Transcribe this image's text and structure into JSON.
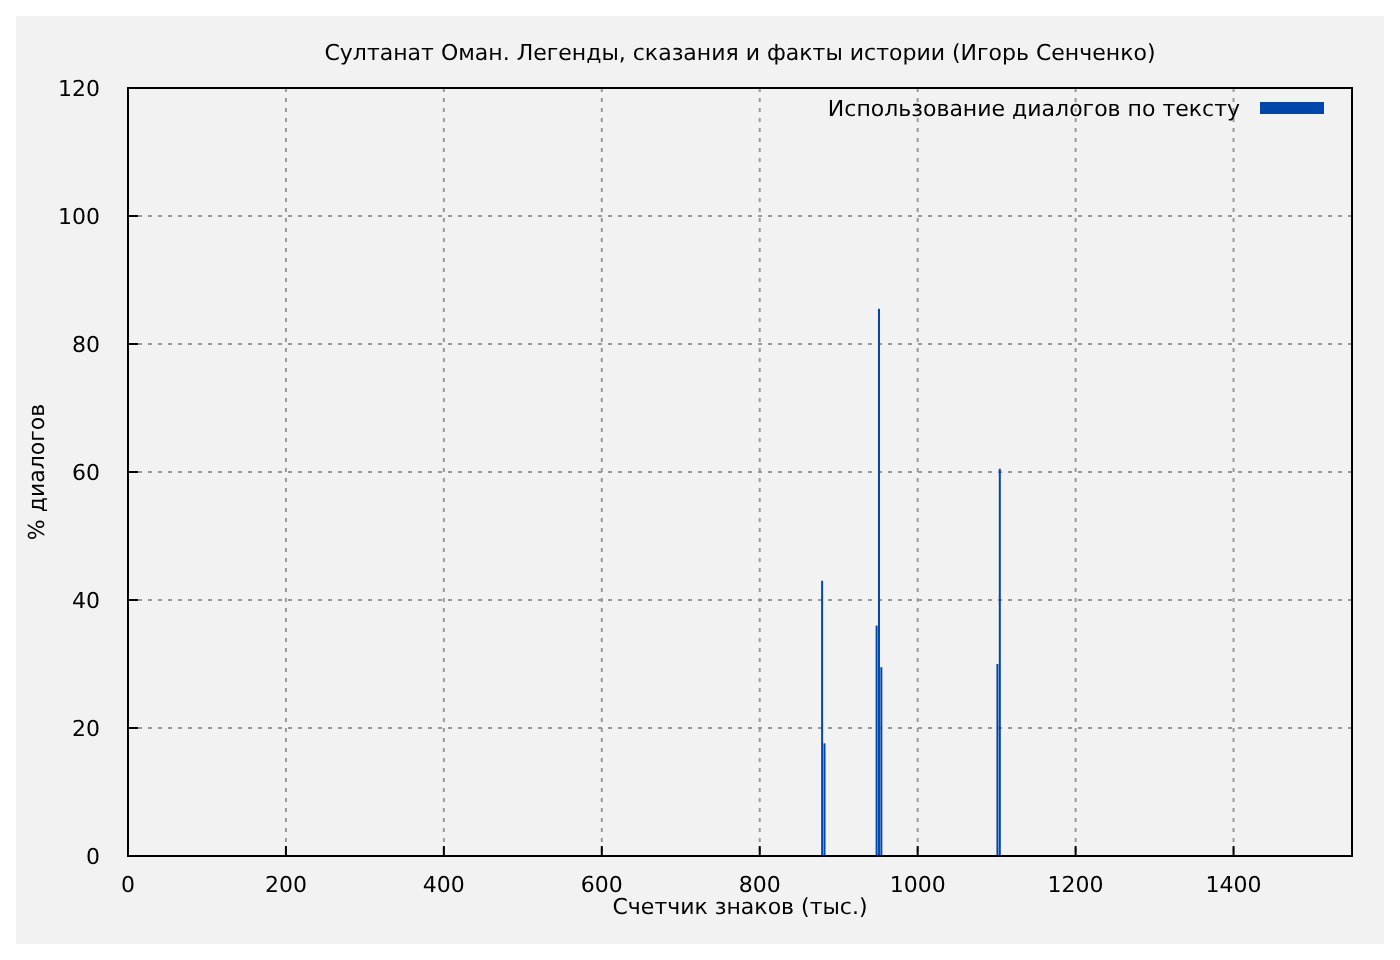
{
  "chart_data": {
    "type": "bar",
    "title": "Султанат Оман. Легенды, сказания и факты истории (Игорь Сенченко)",
    "xlabel": "Счетчик знаков (тыс.)",
    "ylabel": "% диалогов",
    "x": [
      879,
      882,
      948,
      951,
      954,
      1101,
      1104
    ],
    "series": [
      {
        "name": "Использование диалогов по тексту",
        "color": "#0047ab",
        "values": [
          43,
          17.6,
          36,
          85.5,
          29.5,
          30,
          60.5
        ]
      }
    ],
    "xlim": [
      0,
      1550
    ],
    "xticks": [
      0,
      200,
      400,
      600,
      800,
      1000,
      1200,
      1400
    ],
    "ylim": [
      0,
      120
    ],
    "yticks": [
      0,
      20,
      40,
      60,
      80,
      100,
      120
    ],
    "grid": true,
    "legend": "top right"
  }
}
